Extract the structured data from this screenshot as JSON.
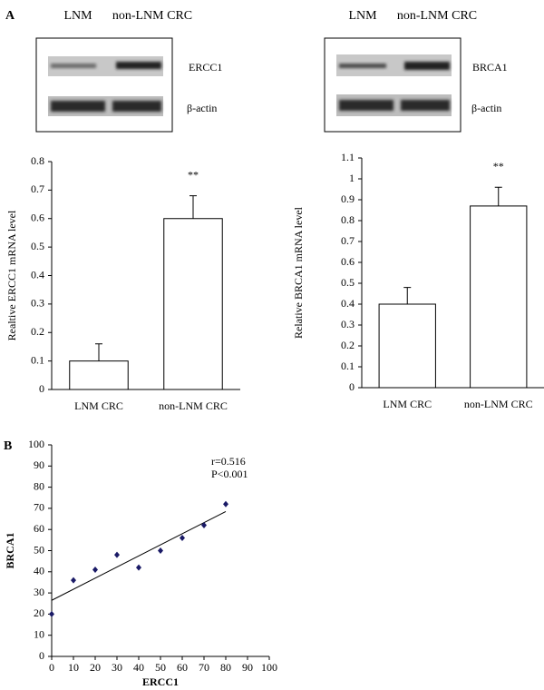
{
  "panel_labels": [
    "A",
    "B"
  ],
  "blots": [
    {
      "lanes": [
        "LNM",
        "non-LNM CRC"
      ],
      "bands": [
        "ERCC1",
        "β-actin"
      ]
    },
    {
      "lanes": [
        "LNM",
        "non-LNM CRC"
      ],
      "bands": [
        "BRCA1",
        "β-actin"
      ]
    }
  ],
  "chart_data": [
    {
      "type": "bar",
      "ylabel": "Realtive ERCC1 mRNA level",
      "categories": [
        "LNM CRC",
        "non-LNM CRC"
      ],
      "values": [
        0.1,
        0.6
      ],
      "errors": [
        0.06,
        0.08
      ],
      "color": "#ffffff",
      "annotation": "**",
      "ylim": [
        0,
        0.8
      ],
      "yticks": [
        0,
        0.1,
        0.2,
        0.3,
        0.4,
        0.5,
        0.6,
        0.7,
        0.8
      ]
    },
    {
      "type": "bar",
      "ylabel": "Relative BRCA1 mRNA level",
      "categories": [
        "LNM CRC",
        "non-LNM CRC"
      ],
      "values": [
        0.4,
        0.87
      ],
      "errors": [
        0.08,
        0.09
      ],
      "color": "#ffffff",
      "annotation": "**",
      "ylim": [
        0,
        1.1
      ],
      "yticks": [
        0,
        0.1,
        0.2,
        0.3,
        0.4,
        0.5,
        0.6,
        0.7,
        0.8,
        0.9,
        1,
        1.1
      ]
    },
    {
      "type": "scatter",
      "xlabel": "ERCC1",
      "ylabel": "BRCA1",
      "x": [
        0,
        10,
        20,
        30,
        40,
        50,
        60,
        70,
        80
      ],
      "y": [
        20,
        36,
        41,
        48,
        42,
        50,
        56,
        62,
        72
      ],
      "color": "#1a1a66",
      "trendline": {
        "x": [
          0,
          80
        ],
        "y": [
          26.5,
          68.5
        ]
      },
      "annotations": [
        "r=0.516",
        "P<0.001"
      ],
      "xlim": [
        0,
        100
      ],
      "xticks": [
        0,
        10,
        20,
        30,
        40,
        50,
        60,
        70,
        80,
        90,
        100
      ],
      "ylim": [
        0,
        100
      ],
      "yticks": [
        0,
        10,
        20,
        30,
        40,
        50,
        60,
        70,
        80,
        90,
        100
      ]
    }
  ]
}
